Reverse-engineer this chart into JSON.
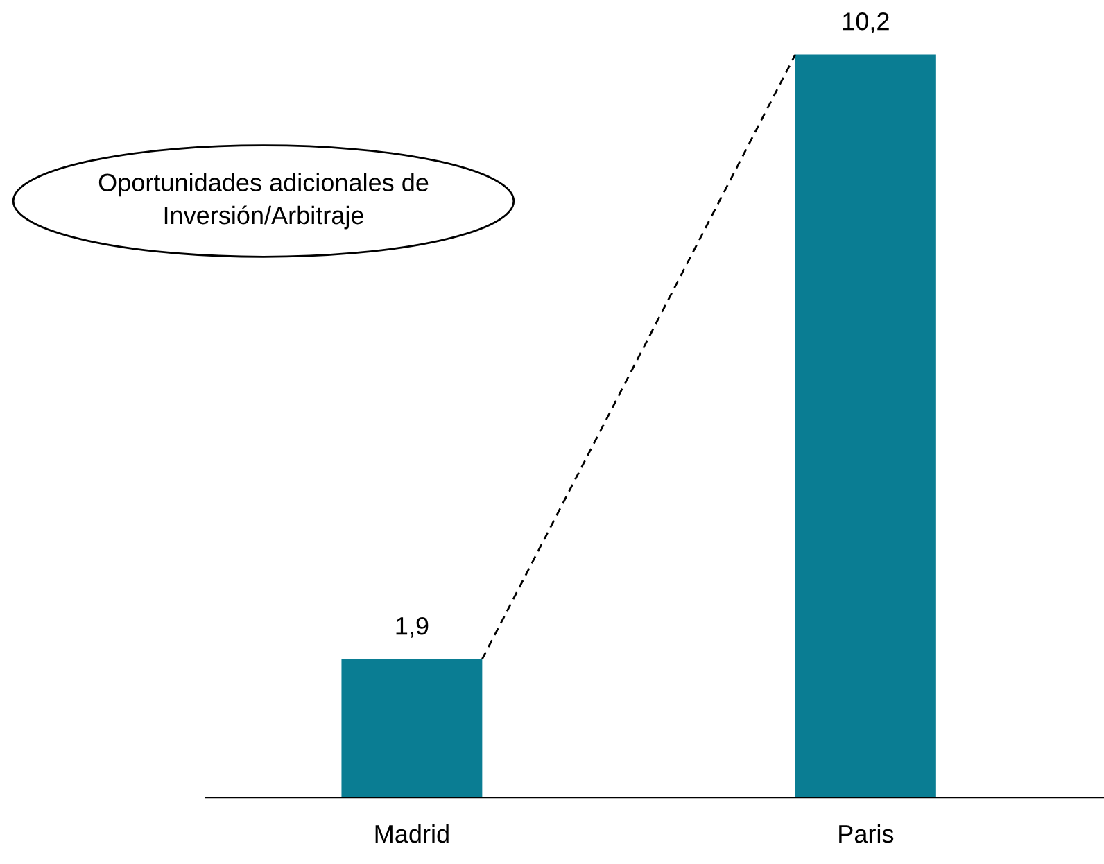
{
  "chart_data": {
    "type": "bar",
    "categories": [
      "Madrid",
      "Paris"
    ],
    "values": [
      1.9,
      10.2
    ],
    "value_labels": [
      "1,9",
      "10,2"
    ],
    "color": "#0a7d93",
    "grid": false,
    "legend": false,
    "tick_labels": "x",
    "annotations": [
      "Oportunidades adicionales de\nInversión/Arbitraje"
    ]
  }
}
